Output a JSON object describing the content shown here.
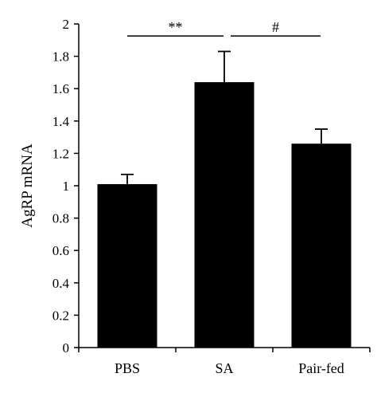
{
  "chart_data": {
    "type": "bar",
    "title": "",
    "xlabel": "",
    "ylabel": "AgRP mRNA",
    "categories": [
      "PBS",
      "SA",
      "Pair-fed"
    ],
    "values": [
      1.01,
      1.64,
      1.26
    ],
    "error": [
      0.06,
      0.19,
      0.09
    ],
    "ylim": [
      0,
      2
    ],
    "yticks": [
      0,
      0.2,
      0.4,
      0.6,
      0.8,
      1,
      1.2,
      1.4,
      1.6,
      1.8,
      2
    ],
    "ytick_labels": [
      "0",
      "0.2",
      "0.4",
      "0.6",
      "0.8",
      "1",
      "1.2",
      "1.4",
      "1.6",
      "1.8",
      "2"
    ],
    "bar_color": "#000000",
    "grid": false,
    "annotations": [
      {
        "from": 0,
        "to": 1,
        "label": "**",
        "level": 1.94
      },
      {
        "from": 1,
        "to": 2,
        "label": "#",
        "level": 1.94
      }
    ]
  }
}
